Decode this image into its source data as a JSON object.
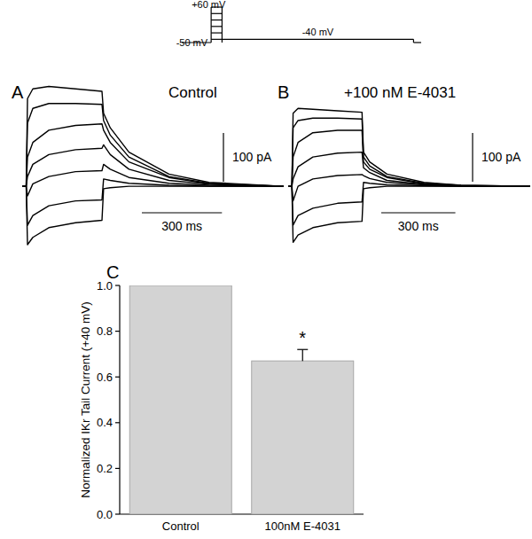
{
  "chart_data": [
    {
      "type": "protocol",
      "times": [
        0,
        135,
        185,
        1065,
        1100
      ],
      "xlim": [
        0,
        1100
      ],
      "ylim": [
        -55,
        65
      ],
      "holding": -50,
      "steps": [
        -40,
        -20,
        0,
        20,
        40,
        60
      ],
      "test": -40,
      "labels": [
        {
          "text": "+60 mV",
          "value": 60
        },
        {
          "text": "-50 mV",
          "value": -50
        },
        {
          "text": "-40 mV",
          "value": -40
        }
      ],
      "color": "#000000"
    },
    {
      "type": "line",
      "panel": "A",
      "title": "Control",
      "x": [
        0,
        15,
        20,
        40,
        100,
        200,
        299,
        305,
        330,
        400,
        550,
        700,
        980
      ],
      "xlim": [
        0,
        980
      ],
      "ylim": [
        -140,
        215
      ],
      "tick_labels": false,
      "color": "#000000",
      "series": [
        {
          "values": [
            0,
            0,
            180,
            200,
            205,
            200,
            195,
            150,
            120,
            70,
            25,
            8,
            0
          ]
        },
        {
          "values": [
            0,
            0,
            130,
            160,
            170,
            170,
            168,
            135,
            105,
            60,
            20,
            6,
            0
          ]
        },
        {
          "values": [
            0,
            0,
            60,
            90,
            115,
            125,
            128,
            115,
            90,
            50,
            18,
            5,
            0
          ]
        },
        {
          "values": [
            0,
            0,
            20,
            45,
            65,
            75,
            78,
            85,
            65,
            35,
            12,
            4,
            0
          ]
        },
        {
          "values": [
            0,
            0,
            -20,
            5,
            20,
            30,
            32,
            45,
            35,
            18,
            6,
            2,
            0
          ]
        },
        {
          "values": [
            0,
            0,
            -80,
            -60,
            -40,
            -30,
            -28,
            15,
            12,
            6,
            2,
            0,
            0
          ]
        },
        {
          "values": [
            0,
            0,
            -120,
            -105,
            -85,
            -75,
            -70,
            -5,
            -3,
            0,
            0,
            0,
            0
          ]
        }
      ],
      "scale_bars": [
        {
          "axis": "y",
          "value": 100,
          "label": "100 pA"
        },
        {
          "axis": "x",
          "value": 300,
          "label": "300 ms"
        }
      ]
    },
    {
      "type": "line",
      "panel": "B",
      "title": "+100 nM E-4031",
      "x": [
        0,
        15,
        20,
        40,
        100,
        200,
        299,
        305,
        330,
        400,
        550,
        700,
        980
      ],
      "xlim": [
        0,
        980
      ],
      "ylim": [
        -140,
        215
      ],
      "tick_labels": false,
      "color": "#000000",
      "series": [
        {
          "values": [
            0,
            0,
            150,
            160,
            158,
            155,
            152,
            70,
            50,
            25,
            8,
            2,
            0
          ]
        },
        {
          "values": [
            0,
            0,
            120,
            135,
            140,
            140,
            138,
            60,
            42,
            20,
            6,
            2,
            0
          ]
        },
        {
          "values": [
            0,
            0,
            60,
            90,
            110,
            115,
            115,
            50,
            35,
            18,
            5,
            1,
            0
          ]
        },
        {
          "values": [
            0,
            0,
            15,
            40,
            60,
            68,
            70,
            38,
            28,
            12,
            4,
            1,
            0
          ]
        },
        {
          "values": [
            0,
            0,
            -30,
            0,
            15,
            22,
            24,
            22,
            16,
            8,
            3,
            0,
            0
          ]
        },
        {
          "values": [
            0,
            0,
            -80,
            -60,
            -45,
            -35,
            -32,
            8,
            6,
            3,
            1,
            0,
            0
          ]
        },
        {
          "values": [
            0,
            0,
            -115,
            -100,
            -85,
            -75,
            -72,
            -5,
            -3,
            0,
            0,
            0,
            0
          ]
        }
      ],
      "scale_bars": [
        {
          "axis": "y",
          "value": 100,
          "label": "100 pA"
        },
        {
          "axis": "x",
          "value": 300,
          "label": "300 ms"
        }
      ]
    },
    {
      "type": "bar",
      "panel": "C",
      "y_label": "Normalized IKr Tail Current (+40 mV)",
      "categories": [
        "Control",
        "100nM E-4031"
      ],
      "values": [
        1.0,
        0.67
      ],
      "errors": [
        null,
        0.05
      ],
      "color": "#d3d3d3",
      "ylim": [
        0,
        1.0
      ],
      "yticks": [
        {
          "value": 0,
          "label": "0.0"
        },
        {
          "value": 0.2,
          "label": "0.2"
        },
        {
          "value": 0.4,
          "label": "0.4"
        },
        {
          "value": 0.6,
          "label": "0.6"
        },
        {
          "value": 0.8,
          "label": "0.8"
        },
        {
          "value": 1.0,
          "label": "1.0"
        }
      ],
      "annotations": [
        {
          "text": "*",
          "category": 1
        }
      ]
    }
  ]
}
